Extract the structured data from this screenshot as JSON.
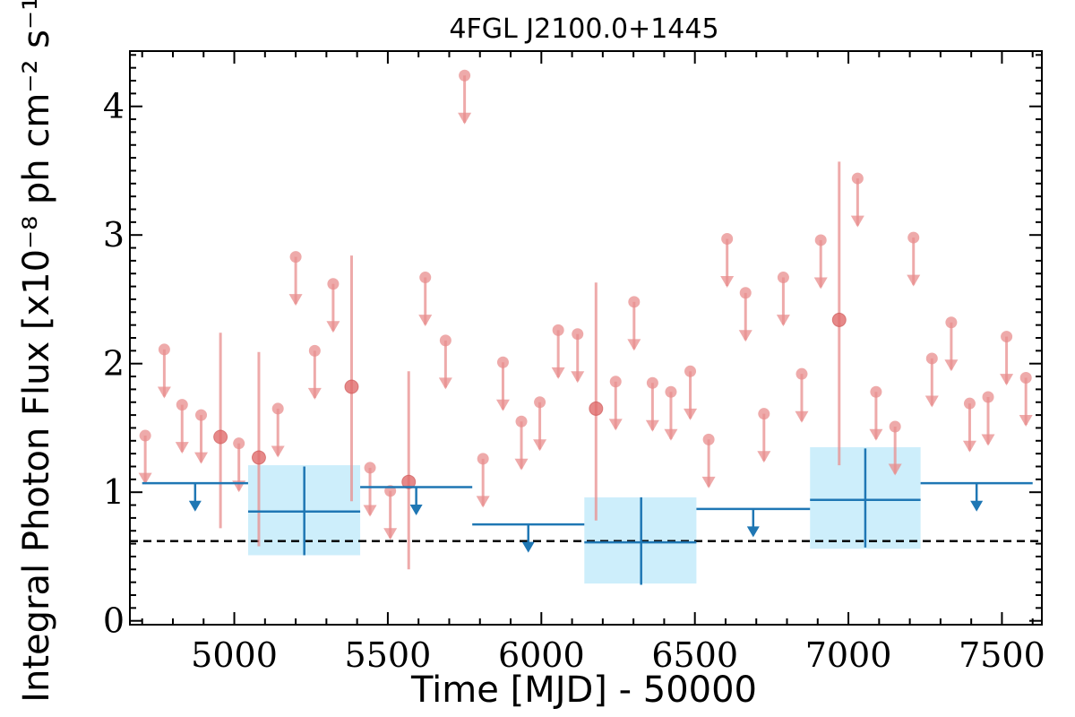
{
  "chart_data": {
    "type": "scatter",
    "title": "4FGL J2100.0+1445",
    "xlabel": "Time [MJD] - 50000",
    "ylabel": "Integral Photon Flux [x10⁻⁸ ph cm⁻² s⁻¹]",
    "xlim": [
      4660,
      7630
    ],
    "ylim": [
      -0.03,
      4.43
    ],
    "x_ticks": [
      5000,
      5500,
      6000,
      6500,
      7000,
      7500
    ],
    "y_ticks": [
      0,
      1,
      2,
      3,
      4
    ],
    "grid": false,
    "colors": {
      "short_bins": "#e88d8d",
      "long_bins": "#1f77b4",
      "long_bin_band": "#cdeefb",
      "reference_line": "#000000"
    },
    "reference_line": {
      "y": 0.62,
      "style": "dashed"
    },
    "short_bins": {
      "name": "",
      "upper_limits": [
        {
          "x": 4710,
          "y": 1.44
        },
        {
          "x": 4772,
          "y": 2.11
        },
        {
          "x": 4830,
          "y": 1.68
        },
        {
          "x": 4892,
          "y": 1.6
        },
        {
          "x": 5015,
          "y": 1.38
        },
        {
          "x": 5142,
          "y": 1.65
        },
        {
          "x": 5200,
          "y": 2.83
        },
        {
          "x": 5262,
          "y": 2.1
        },
        {
          "x": 5322,
          "y": 2.62
        },
        {
          "x": 5442,
          "y": 1.19
        },
        {
          "x": 5508,
          "y": 1.01
        },
        {
          "x": 5622,
          "y": 2.67
        },
        {
          "x": 5688,
          "y": 2.18
        },
        {
          "x": 5750,
          "y": 4.24
        },
        {
          "x": 5810,
          "y": 1.26
        },
        {
          "x": 5875,
          "y": 2.01
        },
        {
          "x": 5935,
          "y": 1.55
        },
        {
          "x": 5995,
          "y": 1.7
        },
        {
          "x": 6055,
          "y": 2.26
        },
        {
          "x": 6118,
          "y": 2.23
        },
        {
          "x": 6242,
          "y": 1.86
        },
        {
          "x": 6302,
          "y": 2.48
        },
        {
          "x": 6362,
          "y": 1.85
        },
        {
          "x": 6422,
          "y": 1.78
        },
        {
          "x": 6485,
          "y": 1.94
        },
        {
          "x": 6545,
          "y": 1.41
        },
        {
          "x": 6605,
          "y": 2.97
        },
        {
          "x": 6665,
          "y": 2.55
        },
        {
          "x": 6725,
          "y": 1.61
        },
        {
          "x": 6788,
          "y": 2.67
        },
        {
          "x": 6848,
          "y": 1.92
        },
        {
          "x": 6910,
          "y": 2.96
        },
        {
          "x": 7030,
          "y": 3.44
        },
        {
          "x": 7090,
          "y": 1.78
        },
        {
          "x": 7152,
          "y": 1.51
        },
        {
          "x": 7212,
          "y": 2.98
        },
        {
          "x": 7272,
          "y": 2.04
        },
        {
          "x": 7335,
          "y": 2.32
        },
        {
          "x": 7395,
          "y": 1.69
        },
        {
          "x": 7455,
          "y": 1.74
        },
        {
          "x": 7515,
          "y": 2.21
        },
        {
          "x": 7578,
          "y": 1.89
        }
      ],
      "detections": [
        {
          "x": 4955,
          "y": 1.43,
          "yerr_low": 0.72,
          "yerr_high": 2.24
        },
        {
          "x": 5080,
          "y": 1.27,
          "yerr_low": 0.58,
          "yerr_high": 2.09
        },
        {
          "x": 5382,
          "y": 1.82,
          "yerr_low": 0.93,
          "yerr_high": 2.84
        },
        {
          "x": 5568,
          "y": 1.08,
          "yerr_low": 0.4,
          "yerr_high": 1.94
        },
        {
          "x": 6178,
          "y": 1.65,
          "yerr_low": 0.78,
          "yerr_high": 2.63
        },
        {
          "x": 6970,
          "y": 2.34,
          "yerr_low": 1.21,
          "yerr_high": 3.57
        }
      ]
    },
    "long_bins": {
      "name": "",
      "upper_limits": [
        {
          "x_start": 4700,
          "x_end": 5045,
          "y": 1.07
        },
        {
          "x_start": 5410,
          "x_end": 5775,
          "y": 1.04
        },
        {
          "x_start": 5775,
          "x_end": 6140,
          "y": 0.75
        },
        {
          "x_start": 6505,
          "x_end": 6875,
          "y": 0.87
        },
        {
          "x_start": 7235,
          "x_end": 7600,
          "y": 1.07
        }
      ],
      "detections": [
        {
          "x": 5228,
          "x_start": 5045,
          "x_end": 5410,
          "y": 0.85,
          "yerr_low": 0.51,
          "yerr_high": 1.2,
          "band_low": 0.51,
          "band_high": 1.21
        },
        {
          "x": 6325,
          "x_start": 6140,
          "x_end": 6505,
          "y": 0.61,
          "yerr_low": 0.28,
          "yerr_high": 0.96,
          "band_low": 0.29,
          "band_high": 0.96
        },
        {
          "x": 7055,
          "x_start": 6875,
          "x_end": 7235,
          "y": 0.94,
          "yerr_low": 0.57,
          "yerr_high": 1.34,
          "band_low": 0.56,
          "band_high": 1.35
        }
      ]
    }
  }
}
